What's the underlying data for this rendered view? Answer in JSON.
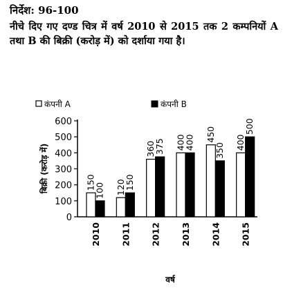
{
  "question": {
    "direction": "निर्देश: 96-100",
    "intro": "नीचे दिए गए दण्ड चित्र में वर्ष 2010 से 2015 तक 2 कम्पनियों A तथा B की बिक्री (करोड़ में) को दर्शाया गया है।"
  },
  "chart_data": {
    "type": "bar",
    "title": "",
    "xlabel": "वर्ष",
    "ylabel": "बिक्री (करोड़ में)",
    "categories": [
      "2010",
      "2011",
      "2012",
      "2013",
      "2014",
      "2015"
    ],
    "series": [
      {
        "name": "कंपनी A",
        "values": [
          150,
          120,
          360,
          400,
          450,
          400
        ],
        "color": "#ffffff"
      },
      {
        "name": "कंपनी B",
        "values": [
          100,
          150,
          375,
          400,
          350,
          500
        ],
        "color": "#000000"
      }
    ],
    "ylim": [
      0,
      600
    ],
    "yticks": [
      0,
      100,
      200,
      300,
      400,
      500,
      600
    ],
    "grid": false,
    "legend": "top",
    "data_labels": true
  }
}
